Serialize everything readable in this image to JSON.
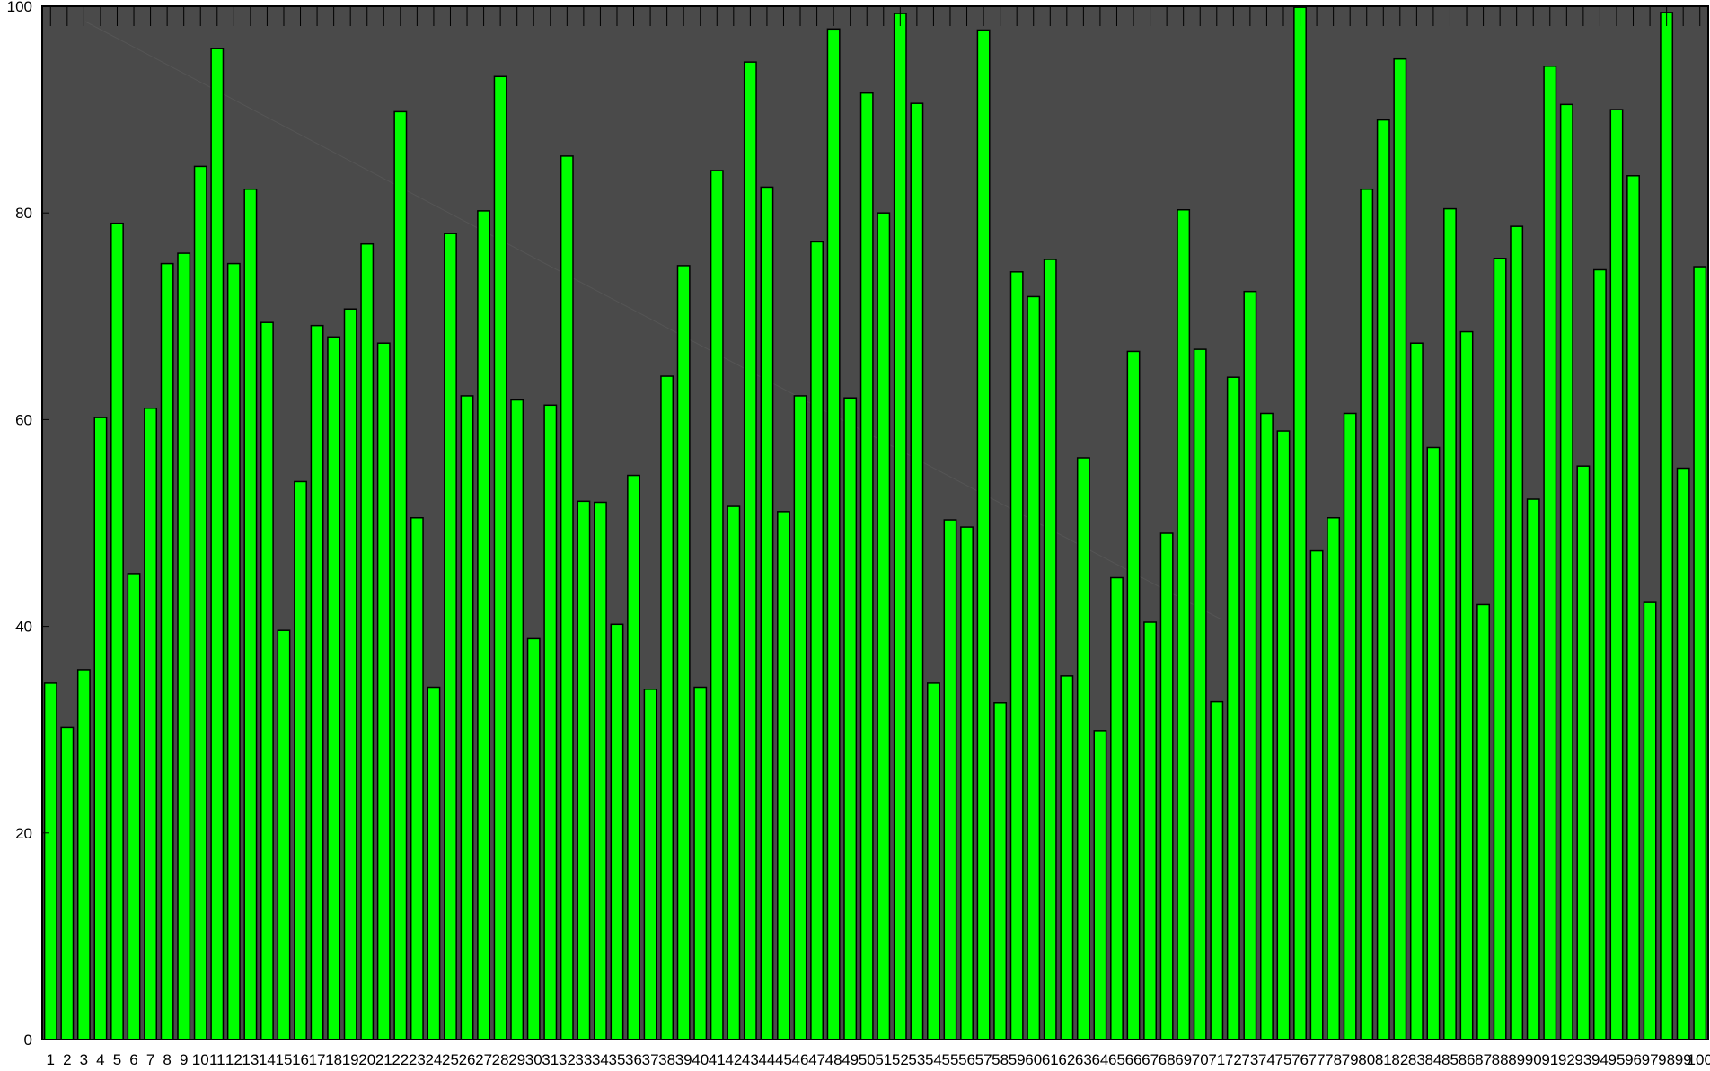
{
  "chart_data": {
    "type": "bar",
    "title": "",
    "xlabel": "",
    "ylabel": "",
    "ylim": [
      0,
      100
    ],
    "y_ticks": [
      "0",
      "20",
      "40",
      "60",
      "80",
      "100"
    ],
    "grid": false,
    "legend": "none",
    "categories": [
      "1",
      "2",
      "3",
      "4",
      "5",
      "6",
      "7",
      "8",
      "9",
      "10",
      "11",
      "12",
      "13",
      "14",
      "15",
      "16",
      "17",
      "18",
      "19",
      "20",
      "21",
      "22",
      "23",
      "24",
      "25",
      "26",
      "27",
      "28",
      "29",
      "30",
      "31",
      "32",
      "33",
      "34",
      "35",
      "36",
      "37",
      "38",
      "39",
      "40",
      "41",
      "42",
      "43",
      "44",
      "45",
      "46",
      "47",
      "48",
      "49",
      "50",
      "51",
      "52",
      "53",
      "54",
      "55",
      "56",
      "57",
      "58",
      "59",
      "60",
      "61",
      "62",
      "63",
      "64",
      "65",
      "66",
      "67",
      "68",
      "69",
      "70",
      "71",
      "72",
      "73",
      "74",
      "75",
      "76",
      "77",
      "78",
      "79",
      "80",
      "81",
      "82",
      "83",
      "84",
      "85",
      "86",
      "87",
      "88",
      "89",
      "90",
      "91",
      "92",
      "93",
      "94",
      "95",
      "96",
      "97",
      "98",
      "99",
      "100"
    ],
    "values": [
      34.5,
      30.2,
      35.8,
      60.2,
      79.0,
      45.1,
      61.1,
      75.1,
      76.1,
      84.5,
      95.9,
      75.1,
      82.3,
      69.4,
      39.6,
      54.0,
      69.1,
      68.0,
      70.7,
      77.0,
      67.4,
      89.8,
      50.5,
      34.1,
      78.0,
      62.3,
      80.2,
      93.2,
      61.9,
      38.8,
      61.4,
      85.5,
      52.1,
      52.0,
      40.2,
      54.6,
      33.9,
      64.2,
      74.9,
      34.1,
      84.1,
      51.6,
      94.6,
      82.5,
      51.1,
      62.3,
      77.2,
      97.8,
      62.1,
      91.6,
      80.0,
      99.3,
      90.6,
      34.5,
      50.3,
      49.6,
      97.7,
      32.6,
      74.3,
      71.9,
      75.5,
      35.2,
      56.3,
      29.9,
      44.7,
      66.6,
      40.4,
      49.0,
      80.3,
      66.8,
      32.7,
      64.1,
      72.4,
      60.6,
      58.9,
      99.9,
      47.3,
      50.5,
      60.6,
      82.3,
      89.0,
      94.9,
      67.4,
      57.3,
      80.4,
      68.5,
      42.1,
      75.6,
      78.7,
      52.3,
      94.2,
      90.5,
      55.5,
      74.5,
      90.0,
      83.6,
      42.3,
      99.4,
      55.3,
      74.8
    ],
    "colors": {
      "bar_fill": "#00ff00",
      "bar_stroke": "#000000",
      "plot_background": "#4a4a4a",
      "page_background": "#ffffff",
      "axis": "#000000"
    }
  }
}
